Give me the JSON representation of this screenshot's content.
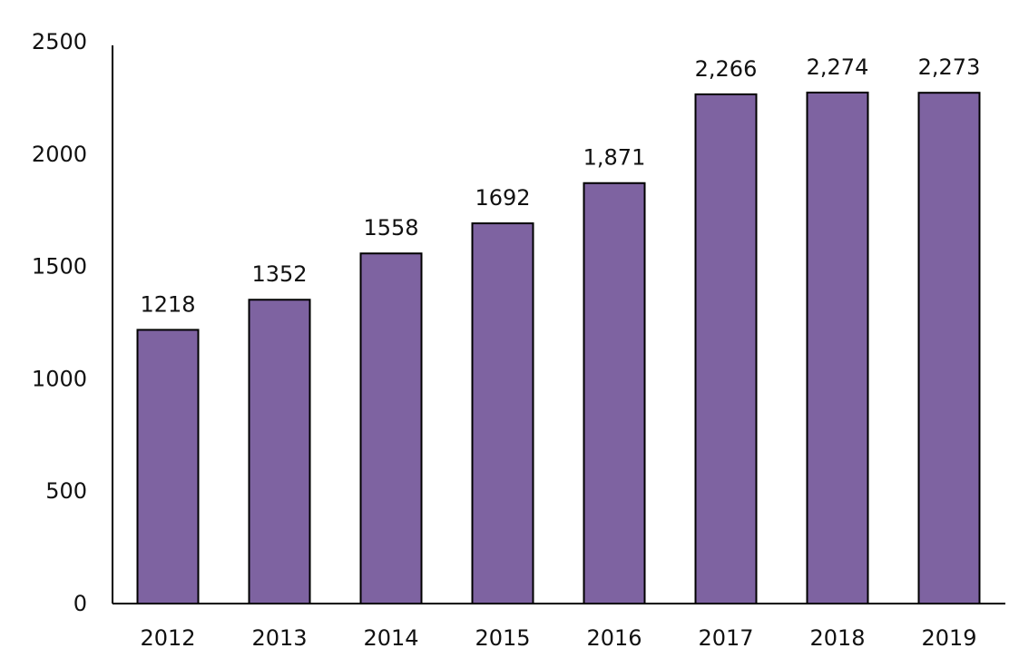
{
  "chart_data": {
    "type": "bar",
    "title": "",
    "xlabel": "",
    "ylabel": "",
    "categories": [
      "2012",
      "2013",
      "2014",
      "2015",
      "2016",
      "2017",
      "2018",
      "2019"
    ],
    "values": [
      1218,
      1352,
      1558,
      1692,
      1871,
      2266,
      2274,
      2273
    ],
    "data_labels": [
      "1218",
      "1352",
      "1558",
      "1692",
      "1,871",
      "2,266",
      "2,274",
      "2,273"
    ],
    "yticks": [
      0,
      500,
      1000,
      1500,
      2000,
      2500
    ],
    "ylim": [
      0,
      2500
    ],
    "grid": false,
    "legend": "none",
    "bar_color": "#7E63A1",
    "bar_outline_color": "#000000"
  }
}
